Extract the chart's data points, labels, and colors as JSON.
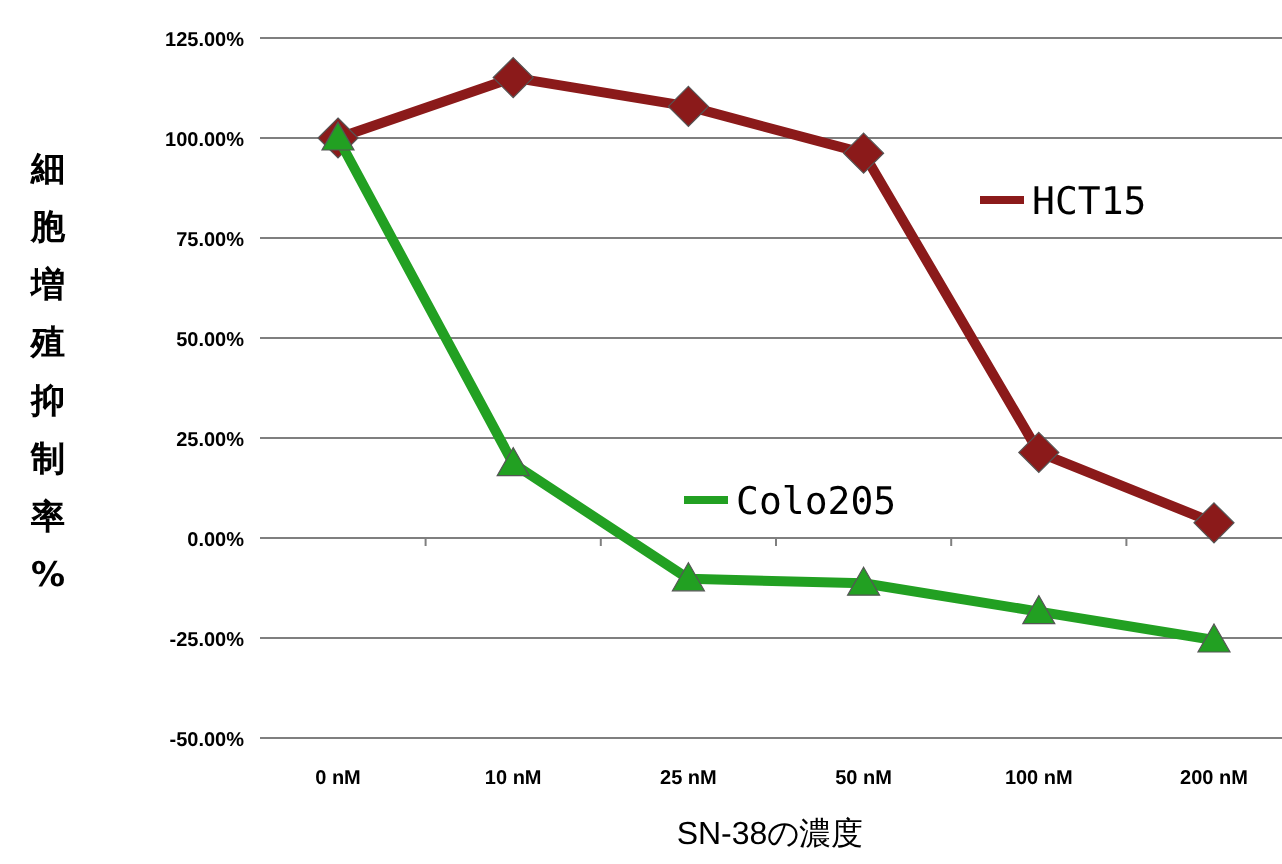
{
  "chart_data": {
    "type": "line",
    "xlabel": "SN-38の濃度",
    "ylabel": "細胞増殖抑制率%",
    "categories": [
      "0 nM",
      "10 nM",
      "25 nM",
      "50 nM",
      "100 nM",
      "200 nM"
    ],
    "series": [
      {
        "name": "HCT15",
        "color": "#8b1a1a",
        "marker": "diamond",
        "values": [
          100,
          115.1,
          107.9,
          96.2,
          21.4,
          3.8
        ]
      },
      {
        "name": "Colo205",
        "color": "#22a022",
        "marker": "triangle",
        "values": [
          100,
          18.6,
          -10.2,
          -11.3,
          -18.4,
          -25.5
        ]
      }
    ],
    "ylim": [
      -50,
      125
    ],
    "yticks": [
      {
        "value": -50,
        "label": "-50.00%"
      },
      {
        "value": -25,
        "label": "-25.00%"
      },
      {
        "value": 0,
        "label": "0.00%"
      },
      {
        "value": 25,
        "label": "25.00%"
      },
      {
        "value": 50,
        "label": "50.00%"
      },
      {
        "value": 75,
        "label": "75.00%"
      },
      {
        "value": 100,
        "label": "100.00%"
      },
      {
        "value": 125,
        "label": "125.00%"
      }
    ],
    "grid": "y",
    "legend": "right"
  }
}
